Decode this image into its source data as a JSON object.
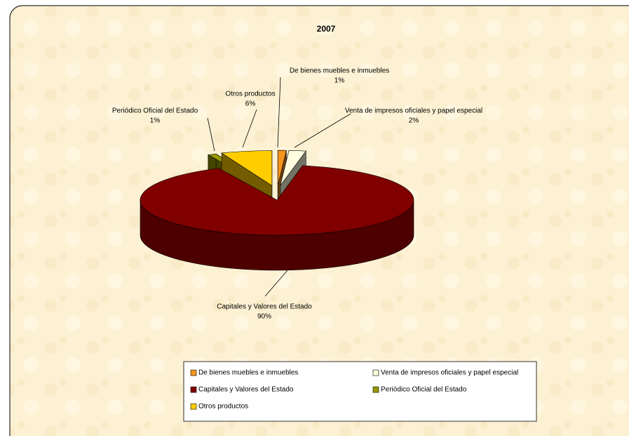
{
  "chart_data": {
    "type": "pie3d",
    "title": "2007",
    "categories": [
      "De bienes muebles e inmuebles",
      "Venta de impresos oficiales y papel especial",
      "Capitales y Valores del Estado",
      "Periódico Oficial del Estado",
      "Otros productos"
    ],
    "values": [
      1,
      2,
      90,
      1,
      6
    ],
    "value_labels": [
      "1%",
      "2%",
      "90%",
      "1%",
      "6%"
    ],
    "colors": [
      "#f7941d",
      "#ffffe0",
      "#800000",
      "#999900",
      "#ffcc00"
    ],
    "legend": "bottom"
  }
}
